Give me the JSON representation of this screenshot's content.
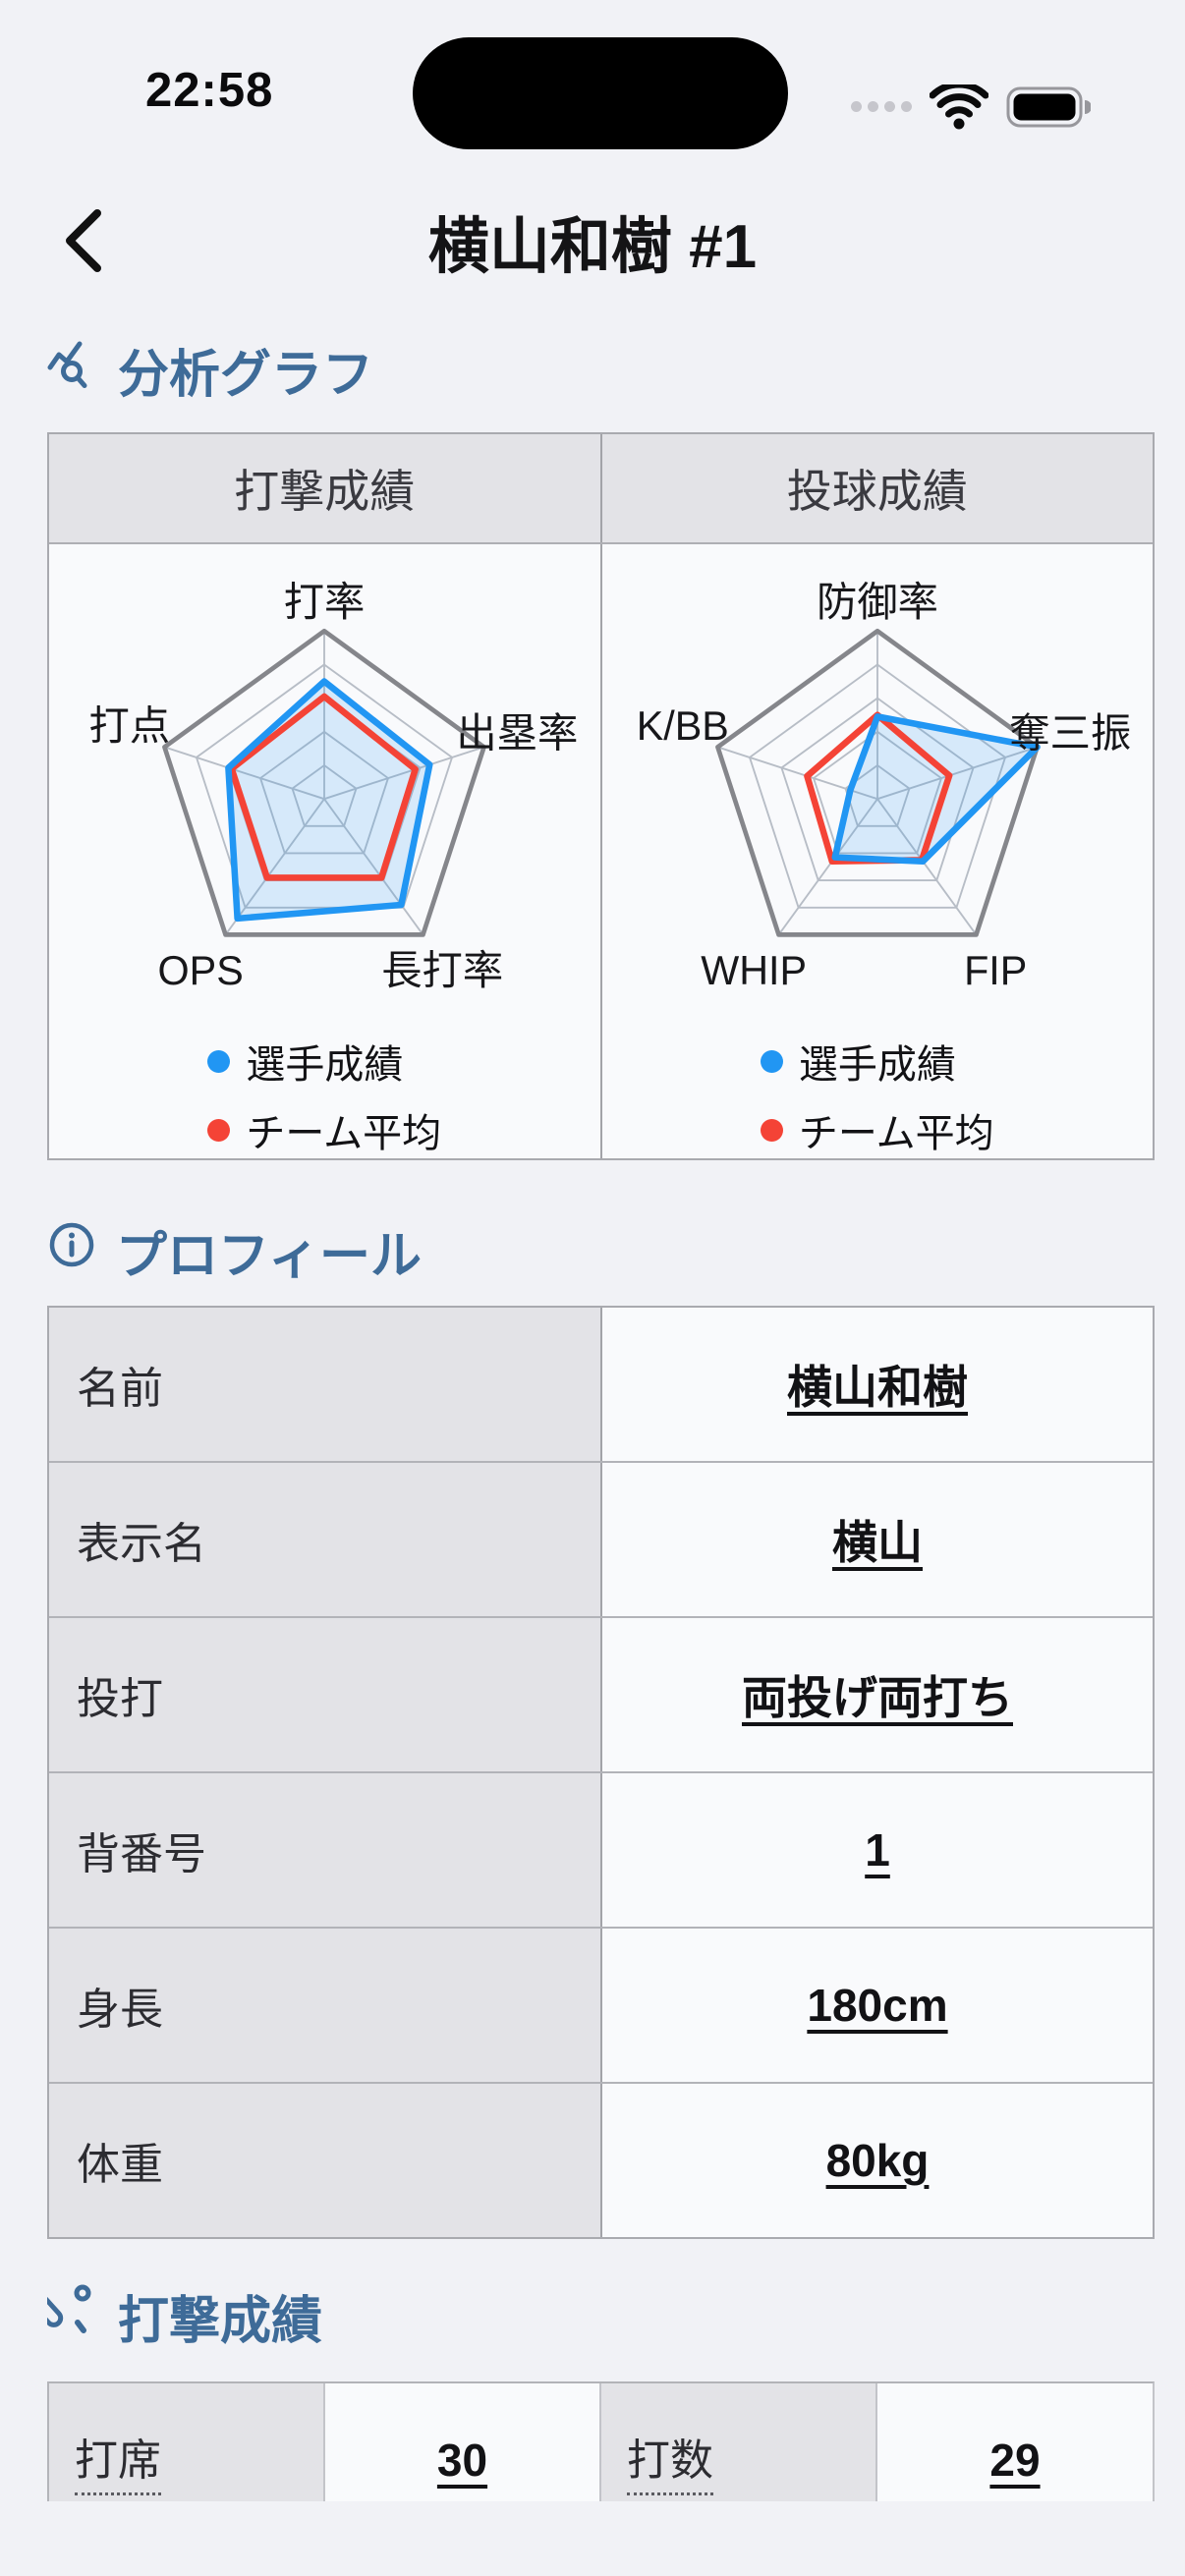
{
  "status_bar": {
    "time": "22:58"
  },
  "nav": {
    "title": "横山和樹 #1"
  },
  "sections": {
    "analysis": {
      "heading": "分析グラフ"
    },
    "profile": {
      "heading": "プロフィール",
      "rows": [
        {
          "label": "名前",
          "value": "横山和樹"
        },
        {
          "label": "表示名",
          "value": "横山"
        },
        {
          "label": "投打",
          "value": "両投げ両打ち"
        },
        {
          "label": "背番号",
          "value": "1"
        },
        {
          "label": "身長",
          "value": "180cm"
        },
        {
          "label": "体重",
          "value": "80kg"
        }
      ]
    },
    "batting": {
      "heading": "打撃成績",
      "stats": [
        {
          "label": "打席",
          "value": "30"
        },
        {
          "label": "打数",
          "value": "29"
        }
      ]
    }
  },
  "chart_data": [
    {
      "type": "radar",
      "panel_title": "打撃成績",
      "axes": [
        "打率",
        "出塁率",
        "長打率",
        "OPS",
        "打点"
      ],
      "scale": {
        "min": 0,
        "max": 1,
        "rings": 5,
        "grid": true
      },
      "legend_position": "bottom",
      "grid_color": "#b7bdc6",
      "outer_color": "#85868b",
      "series": [
        {
          "name": "選手成績",
          "color": "#2196f3",
          "fill": "rgba(33,150,243,0.16)",
          "values": [
            0.7,
            0.66,
            0.78,
            0.88,
            0.6
          ]
        },
        {
          "name": "チーム平均",
          "color": "#f44336",
          "fill": "none",
          "values": [
            0.61,
            0.57,
            0.58,
            0.58,
            0.58
          ]
        }
      ]
    },
    {
      "type": "radar",
      "panel_title": "投球成績",
      "axes": [
        "防御率",
        "奪三振",
        "FIP",
        "WHIP",
        "K/BB"
      ],
      "scale": {
        "min": 0,
        "max": 1,
        "rings": 5,
        "grid": true
      },
      "legend_position": "bottom",
      "grid_color": "#b7bdc6",
      "outer_color": "#85868b",
      "series": [
        {
          "name": "選手成績",
          "color": "#2196f3",
          "fill": "rgba(33,150,243,0.16)",
          "values": [
            0.49,
            1.0,
            0.46,
            0.43,
            0.17
          ]
        },
        {
          "name": "チーム平均",
          "color": "#f44336",
          "fill": "none",
          "values": [
            0.5,
            0.45,
            0.45,
            0.46,
            0.44
          ]
        }
      ]
    }
  ]
}
